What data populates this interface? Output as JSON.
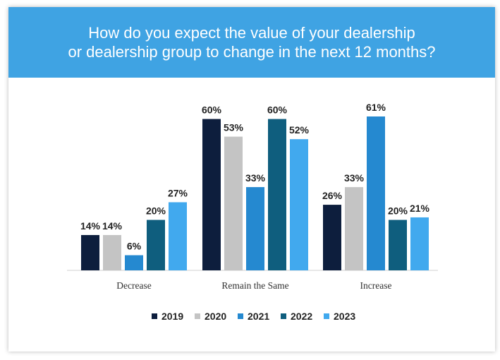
{
  "header": {
    "title": "How do you expect the value of your dealership\nor dealership group to change in the next 12 months?",
    "background": "#3fa3e3"
  },
  "chart_data": {
    "type": "bar",
    "title": "How do you expect the value of your dealership or dealership group to change in the next 12 months?",
    "categories": [
      "Decrease",
      "Remain the Same",
      "Increase"
    ],
    "value_suffix": "%",
    "series": [
      {
        "name": "2019",
        "color": "#0d1e3d",
        "values": [
          14,
          60,
          26
        ]
      },
      {
        "name": "2020",
        "color": "#c4c4c4",
        "values": [
          14,
          53,
          33
        ]
      },
      {
        "name": "2021",
        "color": "#2589d0",
        "values": [
          6,
          33,
          61
        ]
      },
      {
        "name": "2022",
        "color": "#0f5e7e",
        "values": [
          20,
          60,
          20
        ]
      },
      {
        "name": "2023",
        "color": "#41a9ee",
        "values": [
          27,
          52,
          21
        ]
      }
    ],
    "ylim": [
      0,
      61
    ],
    "grid": false,
    "legend": "bottom-center"
  }
}
